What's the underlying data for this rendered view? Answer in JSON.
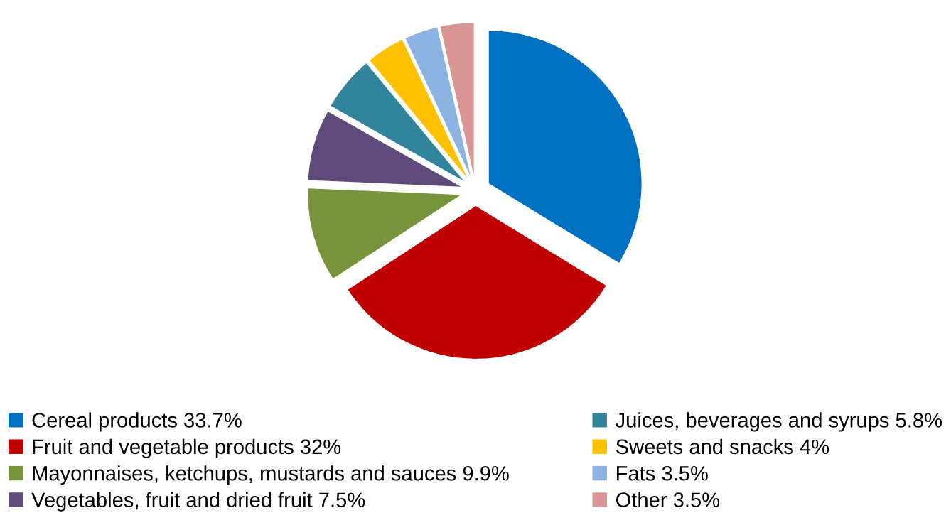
{
  "chart_data": {
    "type": "pie",
    "categories": [
      "Cereal products",
      "Fruit and vegetable products",
      "Mayonnaises, ketchups, mustards and sauces",
      "Vegetables, fruit and dried fruit",
      "Juices, beverages and syrups",
      "Sweets and snacks",
      "Fats",
      "Other"
    ],
    "values": [
      33.7,
      32,
      9.9,
      7.5,
      5.8,
      4,
      3.5,
      3.5
    ],
    "value_labels": [
      "33.7%",
      "32%",
      "9.9%",
      "7.5%",
      "5.8%",
      "4%",
      "3.5%",
      "3.5%"
    ],
    "colors": [
      "#0070c0",
      "#c00000",
      "#77933c",
      "#604a7b",
      "#31849b",
      "#ffc000",
      "#8db3e2",
      "#d99694"
    ],
    "legend": "bottom"
  }
}
